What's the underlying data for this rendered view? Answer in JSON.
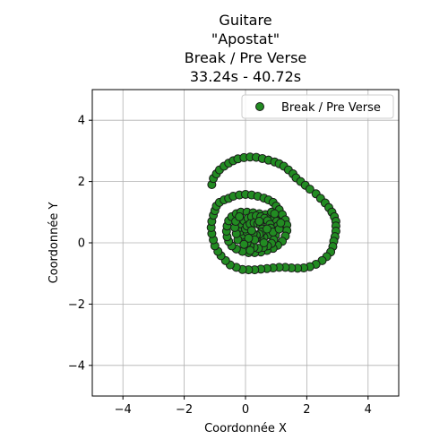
{
  "chart_data": {
    "type": "scatter",
    "title_lines": [
      "Guitare",
      "\"Apostat\"",
      "Break / Pre Verse",
      "33.24s - 40.72s"
    ],
    "xlabel": "Coordonnée X",
    "ylabel": "Coordonnée Y",
    "xlim": [
      -5,
      5
    ],
    "ylim": [
      -5,
      5
    ],
    "xticks": [
      -4,
      -2,
      0,
      2,
      4
    ],
    "yticks": [
      -4,
      -2,
      0,
      2,
      4
    ],
    "xtick_labels": [
      "−4",
      "−2",
      "0",
      "2",
      "4"
    ],
    "ytick_labels": [
      "−4",
      "−2",
      "0",
      "2",
      "4"
    ],
    "grid": true,
    "legend": {
      "position": "top-right"
    },
    "series": [
      {
        "name": "Break / Pre Verse",
        "color": "#228b22",
        "edge_color": "#1a1a1a",
        "points": [
          [
            -1.1,
            1.9
          ],
          [
            -1.05,
            2.1
          ],
          [
            -0.95,
            2.25
          ],
          [
            -0.85,
            2.38
          ],
          [
            -0.7,
            2.5
          ],
          [
            -0.55,
            2.6
          ],
          [
            -0.4,
            2.68
          ],
          [
            -0.25,
            2.74
          ],
          [
            -0.05,
            2.78
          ],
          [
            0.15,
            2.8
          ],
          [
            0.35,
            2.79
          ],
          [
            0.55,
            2.75
          ],
          [
            0.75,
            2.7
          ],
          [
            0.95,
            2.64
          ],
          [
            1.1,
            2.58
          ],
          [
            1.25,
            2.5
          ],
          [
            1.4,
            2.38
          ],
          [
            1.55,
            2.25
          ],
          [
            1.65,
            2.12
          ],
          [
            1.8,
            2.0
          ],
          [
            1.95,
            1.88
          ],
          [
            2.1,
            1.75
          ],
          [
            2.3,
            1.6
          ],
          [
            2.45,
            1.45
          ],
          [
            2.6,
            1.3
          ],
          [
            2.72,
            1.15
          ],
          [
            2.82,
            1.0
          ],
          [
            2.9,
            0.85
          ],
          [
            2.95,
            0.7
          ],
          [
            2.95,
            0.55
          ],
          [
            2.95,
            0.38
          ],
          [
            2.92,
            0.2
          ],
          [
            2.88,
            0.05
          ],
          [
            2.85,
            -0.12
          ],
          [
            2.78,
            -0.3
          ],
          [
            2.65,
            -0.45
          ],
          [
            2.5,
            -0.58
          ],
          [
            2.3,
            -0.7
          ],
          [
            2.1,
            -0.78
          ],
          [
            1.9,
            -0.82
          ],
          [
            1.7,
            -0.83
          ],
          [
            1.5,
            -0.82
          ],
          [
            1.3,
            -0.8
          ],
          [
            1.1,
            -0.8
          ],
          [
            0.9,
            -0.82
          ],
          [
            0.7,
            -0.84
          ],
          [
            0.5,
            -0.86
          ],
          [
            0.3,
            -0.88
          ],
          [
            0.1,
            -0.88
          ],
          [
            -0.1,
            -0.87
          ],
          [
            -0.3,
            -0.8
          ],
          [
            -0.5,
            -0.72
          ],
          [
            -0.65,
            -0.58
          ],
          [
            -0.8,
            -0.42
          ],
          [
            -0.9,
            -0.28
          ],
          [
            -1.0,
            -0.1
          ],
          [
            -1.05,
            0.1
          ],
          [
            -1.1,
            0.3
          ],
          [
            -1.12,
            0.5
          ],
          [
            -1.1,
            0.7
          ],
          [
            -1.05,
            0.9
          ],
          [
            -1.0,
            1.05
          ],
          [
            -0.95,
            1.2
          ],
          [
            -0.85,
            1.32
          ],
          [
            -0.7,
            1.4
          ],
          [
            -0.55,
            1.45
          ],
          [
            -0.4,
            1.52
          ],
          [
            -0.2,
            1.56
          ],
          [
            0.0,
            1.58
          ],
          [
            0.2,
            1.56
          ],
          [
            0.4,
            1.52
          ],
          [
            0.6,
            1.46
          ],
          [
            0.75,
            1.4
          ],
          [
            0.9,
            1.32
          ],
          [
            1.0,
            1.2
          ],
          [
            1.1,
            1.08
          ],
          [
            1.2,
            0.92
          ],
          [
            1.3,
            0.75
          ],
          [
            1.35,
            0.58
          ],
          [
            1.35,
            0.4
          ],
          [
            1.3,
            0.22
          ],
          [
            1.2,
            0.05
          ],
          [
            1.05,
            -0.08
          ],
          [
            0.9,
            -0.18
          ],
          [
            0.7,
            -0.25
          ],
          [
            0.5,
            -0.3
          ],
          [
            0.3,
            -0.32
          ],
          [
            0.1,
            -0.32
          ],
          [
            -0.1,
            -0.28
          ],
          [
            -0.3,
            -0.2
          ],
          [
            -0.45,
            -0.1
          ],
          [
            -0.55,
            0.05
          ],
          [
            -0.6,
            0.2
          ],
          [
            -0.62,
            0.38
          ],
          [
            -0.6,
            0.55
          ],
          [
            -0.55,
            0.72
          ],
          [
            -0.45,
            0.85
          ],
          [
            -0.3,
            0.95
          ],
          [
            -0.15,
            1.0
          ],
          [
            0.05,
            1.0
          ],
          [
            0.25,
            0.98
          ],
          [
            0.45,
            0.95
          ],
          [
            0.65,
            0.92
          ],
          [
            0.82,
            0.88
          ],
          [
            0.95,
            0.82
          ],
          [
            1.02,
            0.7
          ],
          [
            1.05,
            0.55
          ],
          [
            1.02,
            0.4
          ],
          [
            0.98,
            0.25
          ],
          [
            0.92,
            0.1
          ],
          [
            0.85,
            -0.02
          ],
          [
            0.72,
            -0.1
          ],
          [
            0.58,
            -0.15
          ],
          [
            0.42,
            -0.18
          ],
          [
            0.28,
            -0.15
          ],
          [
            0.15,
            -0.1
          ],
          [
            0.05,
            0.0
          ],
          [
            -0.05,
            0.12
          ],
          [
            -0.1,
            0.25
          ],
          [
            -0.15,
            0.38
          ],
          [
            -0.18,
            0.5
          ],
          [
            -0.15,
            0.62
          ],
          [
            -0.05,
            0.72
          ],
          [
            0.08,
            0.8
          ],
          [
            0.2,
            0.85
          ],
          [
            0.35,
            0.88
          ],
          [
            0.5,
            0.85
          ],
          [
            0.62,
            0.8
          ],
          [
            0.72,
            0.72
          ],
          [
            0.8,
            0.6
          ],
          [
            0.82,
            0.48
          ],
          [
            0.8,
            0.35
          ],
          [
            0.72,
            0.25
          ],
          [
            0.6,
            0.18
          ],
          [
            0.48,
            0.15
          ],
          [
            0.35,
            0.15
          ],
          [
            0.22,
            0.18
          ],
          [
            0.12,
            0.25
          ],
          [
            0.05,
            0.35
          ],
          [
            0.0,
            0.45
          ],
          [
            0.05,
            0.55
          ],
          [
            0.15,
            0.62
          ],
          [
            0.28,
            0.65
          ],
          [
            0.4,
            0.62
          ],
          [
            0.5,
            0.55
          ],
          [
            0.55,
            0.45
          ],
          [
            0.52,
            0.35
          ],
          [
            0.45,
            0.28
          ],
          [
            0.35,
            0.25
          ],
          [
            0.25,
            0.3
          ],
          [
            0.2,
            0.4
          ],
          [
            -0.25,
            0.1
          ],
          [
            -0.3,
            0.3
          ],
          [
            -0.35,
            0.5
          ],
          [
            -0.32,
            0.7
          ],
          [
            -0.2,
            0.85
          ],
          [
            0.3,
            0.1
          ],
          [
            0.6,
            0.0
          ],
          [
            0.9,
            0.35
          ],
          [
            1.1,
            0.45
          ],
          [
            1.15,
            0.65
          ],
          [
            0.7,
            0.45
          ],
          [
            0.45,
            0.7
          ],
          [
            0.1,
            0.15
          ],
          [
            -0.05,
            -0.05
          ],
          [
            0.15,
            -0.25
          ],
          [
            0.85,
            1.0
          ],
          [
            0.95,
            0.95
          ]
        ]
      }
    ]
  }
}
